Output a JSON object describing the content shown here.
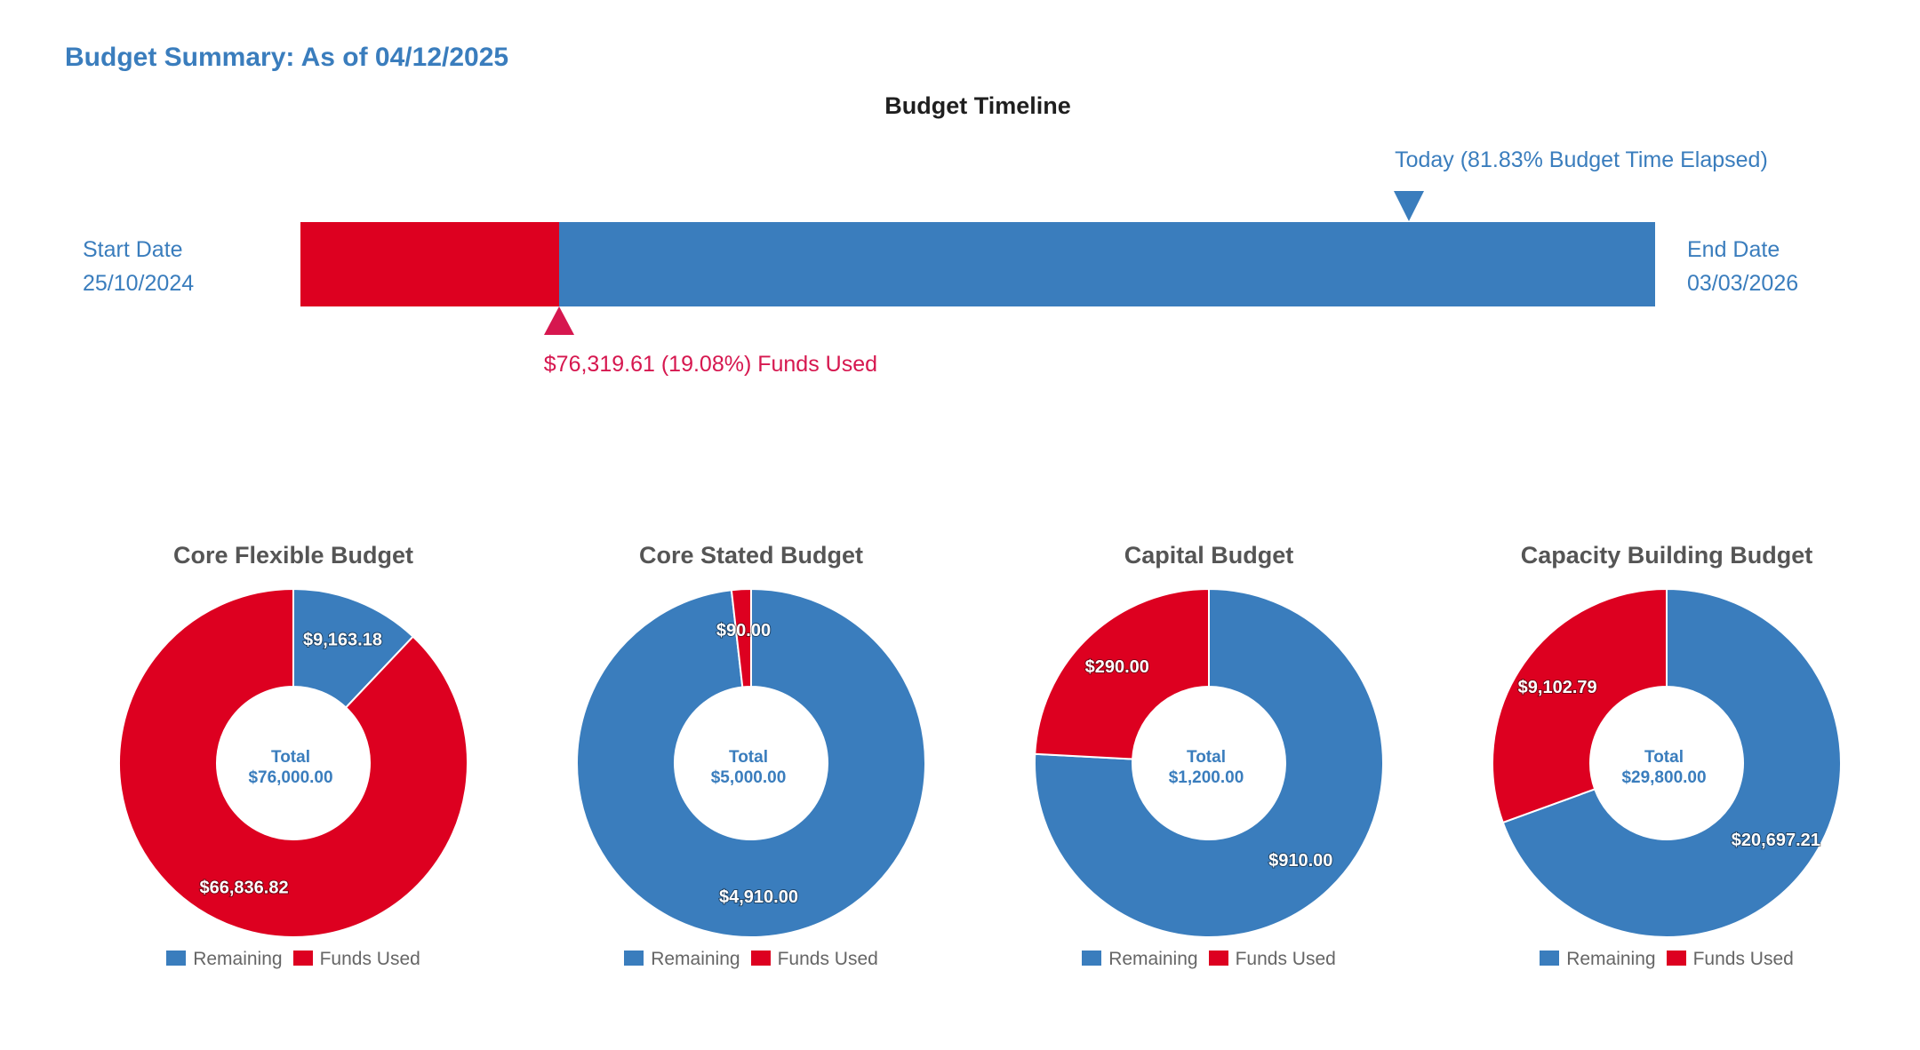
{
  "page_title": "Budget Summary: As of 04/12/2025",
  "timeline": {
    "title": "Budget Timeline",
    "start_label": "Start Date",
    "start_date": "25/10/2024",
    "end_label": "End Date",
    "end_date": "03/03/2026",
    "today_label": "Today (81.83% Budget Time Elapsed)",
    "time_elapsed_pct": 81.83,
    "funds_used_label": "$76,319.61 (19.08%) Funds Used",
    "funds_used_pct": 19.08
  },
  "colors": {
    "remaining": "#3a7dbd",
    "funds_used": "#dd0020",
    "funds_used_label": "#d6174f"
  },
  "chart_data": [
    {
      "type": "pie",
      "title": "Core Flexible Budget",
      "center_label": "Total",
      "center_value": "$76,000.00",
      "slices": [
        {
          "name": "Remaining",
          "value": 9163.18,
          "label": "$9,163.18"
        },
        {
          "name": "Funds Used",
          "value": 66836.82,
          "label": "$66,836.82"
        }
      ],
      "legend": [
        "Remaining",
        "Funds Used"
      ]
    },
    {
      "type": "pie",
      "title": "Core Stated Budget",
      "center_label": "Total",
      "center_value": "$5,000.00",
      "slices": [
        {
          "name": "Remaining",
          "value": 4910.0,
          "label": "$4,910.00"
        },
        {
          "name": "Funds Used",
          "value": 90.0,
          "label": "$90.00"
        }
      ],
      "legend": [
        "Remaining",
        "Funds Used"
      ]
    },
    {
      "type": "pie",
      "title": "Capital Budget",
      "center_label": "Total",
      "center_value": "$1,200.00",
      "slices": [
        {
          "name": "Remaining",
          "value": 910.0,
          "label": "$910.00"
        },
        {
          "name": "Funds Used",
          "value": 290.0,
          "label": "$290.00"
        }
      ],
      "legend": [
        "Remaining",
        "Funds Used"
      ]
    },
    {
      "type": "pie",
      "title": "Capacity Building Budget",
      "center_label": "Total",
      "center_value": "$29,800.00",
      "slices": [
        {
          "name": "Remaining",
          "value": 20697.21,
          "label": "$20,697.21"
        },
        {
          "name": "Funds Used",
          "value": 9102.79,
          "label": "$9,102.79"
        }
      ],
      "legend": [
        "Remaining",
        "Funds Used"
      ]
    }
  ]
}
